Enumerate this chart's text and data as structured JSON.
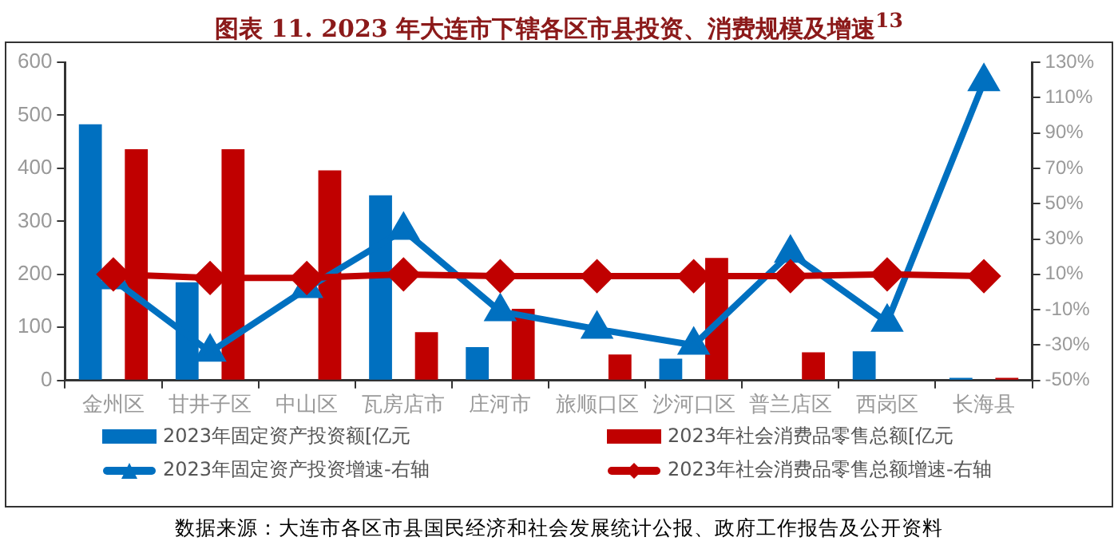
{
  "chart_data": {
    "type": "bar",
    "title": "图表 11. 2023 年大连市下辖各区市县投资、消费规模及增速$^{13}$",
    "categories": [
      "金州区",
      "甘井子区",
      "中山区",
      "瓦房店市",
      "庄河市",
      "旅顺口区",
      "沙河口区",
      "普兰店区",
      "西岗区",
      "长海县"
    ],
    "series": [
      {
        "name": "2023年固定资产投资额[亿元",
        "color": "#0070c0",
        "values": [
          483,
          185,
          null,
          349,
          63,
          null,
          41,
          null,
          55,
          5
        ]
      },
      {
        "name": "2023年社会消费品零售总额[亿元",
        "color": "#c00000",
        "values": [
          436,
          436,
          396,
          91,
          135,
          49,
          231,
          53,
          null,
          5
        ]
      },
      {
        "name": "2023年固定资产投资增速-右轴",
        "color": "#0070c0",
        "type": "line",
        "axis": "y2",
        "marker": "triangle",
        "values": [
          7,
          -34,
          2,
          35,
          -11,
          -21,
          -30,
          22,
          -17,
          119
        ]
      },
      {
        "name": "2023年社会消费品零售总额增速-右轴",
        "color": "#c00000",
        "type": "line",
        "axis": "y2",
        "marker": "diamond",
        "values": [
          10,
          8,
          8,
          10,
          9,
          9,
          9,
          9,
          10,
          9
        ]
      }
    ],
    "ylim": [
      0,
      600
    ],
    "yticks": [
      0,
      100,
      200,
      300,
      400,
      500,
      600
    ],
    "y2lim": [
      -50,
      130
    ],
    "y2ticks": [
      {
        "value": -50,
        "label": "-50%"
      },
      {
        "value": -30,
        "label": "-30%"
      },
      {
        "value": -10,
        "label": "-10%"
      },
      {
        "value": 10,
        "label": "10%"
      },
      {
        "value": 30,
        "label": "30%"
      },
      {
        "value": 50,
        "label": "50%"
      },
      {
        "value": 70,
        "label": "70%"
      },
      {
        "value": 90,
        "label": "90%"
      },
      {
        "value": 110,
        "label": "110%"
      },
      {
        "value": 130,
        "label": "130%"
      }
    ],
    "grid": false,
    "legend": "bottom",
    "annotations": [
      "数据来源：大连市各区市县国民经济和社会发展统计公报、政府工作报告及公开资料"
    ]
  }
}
